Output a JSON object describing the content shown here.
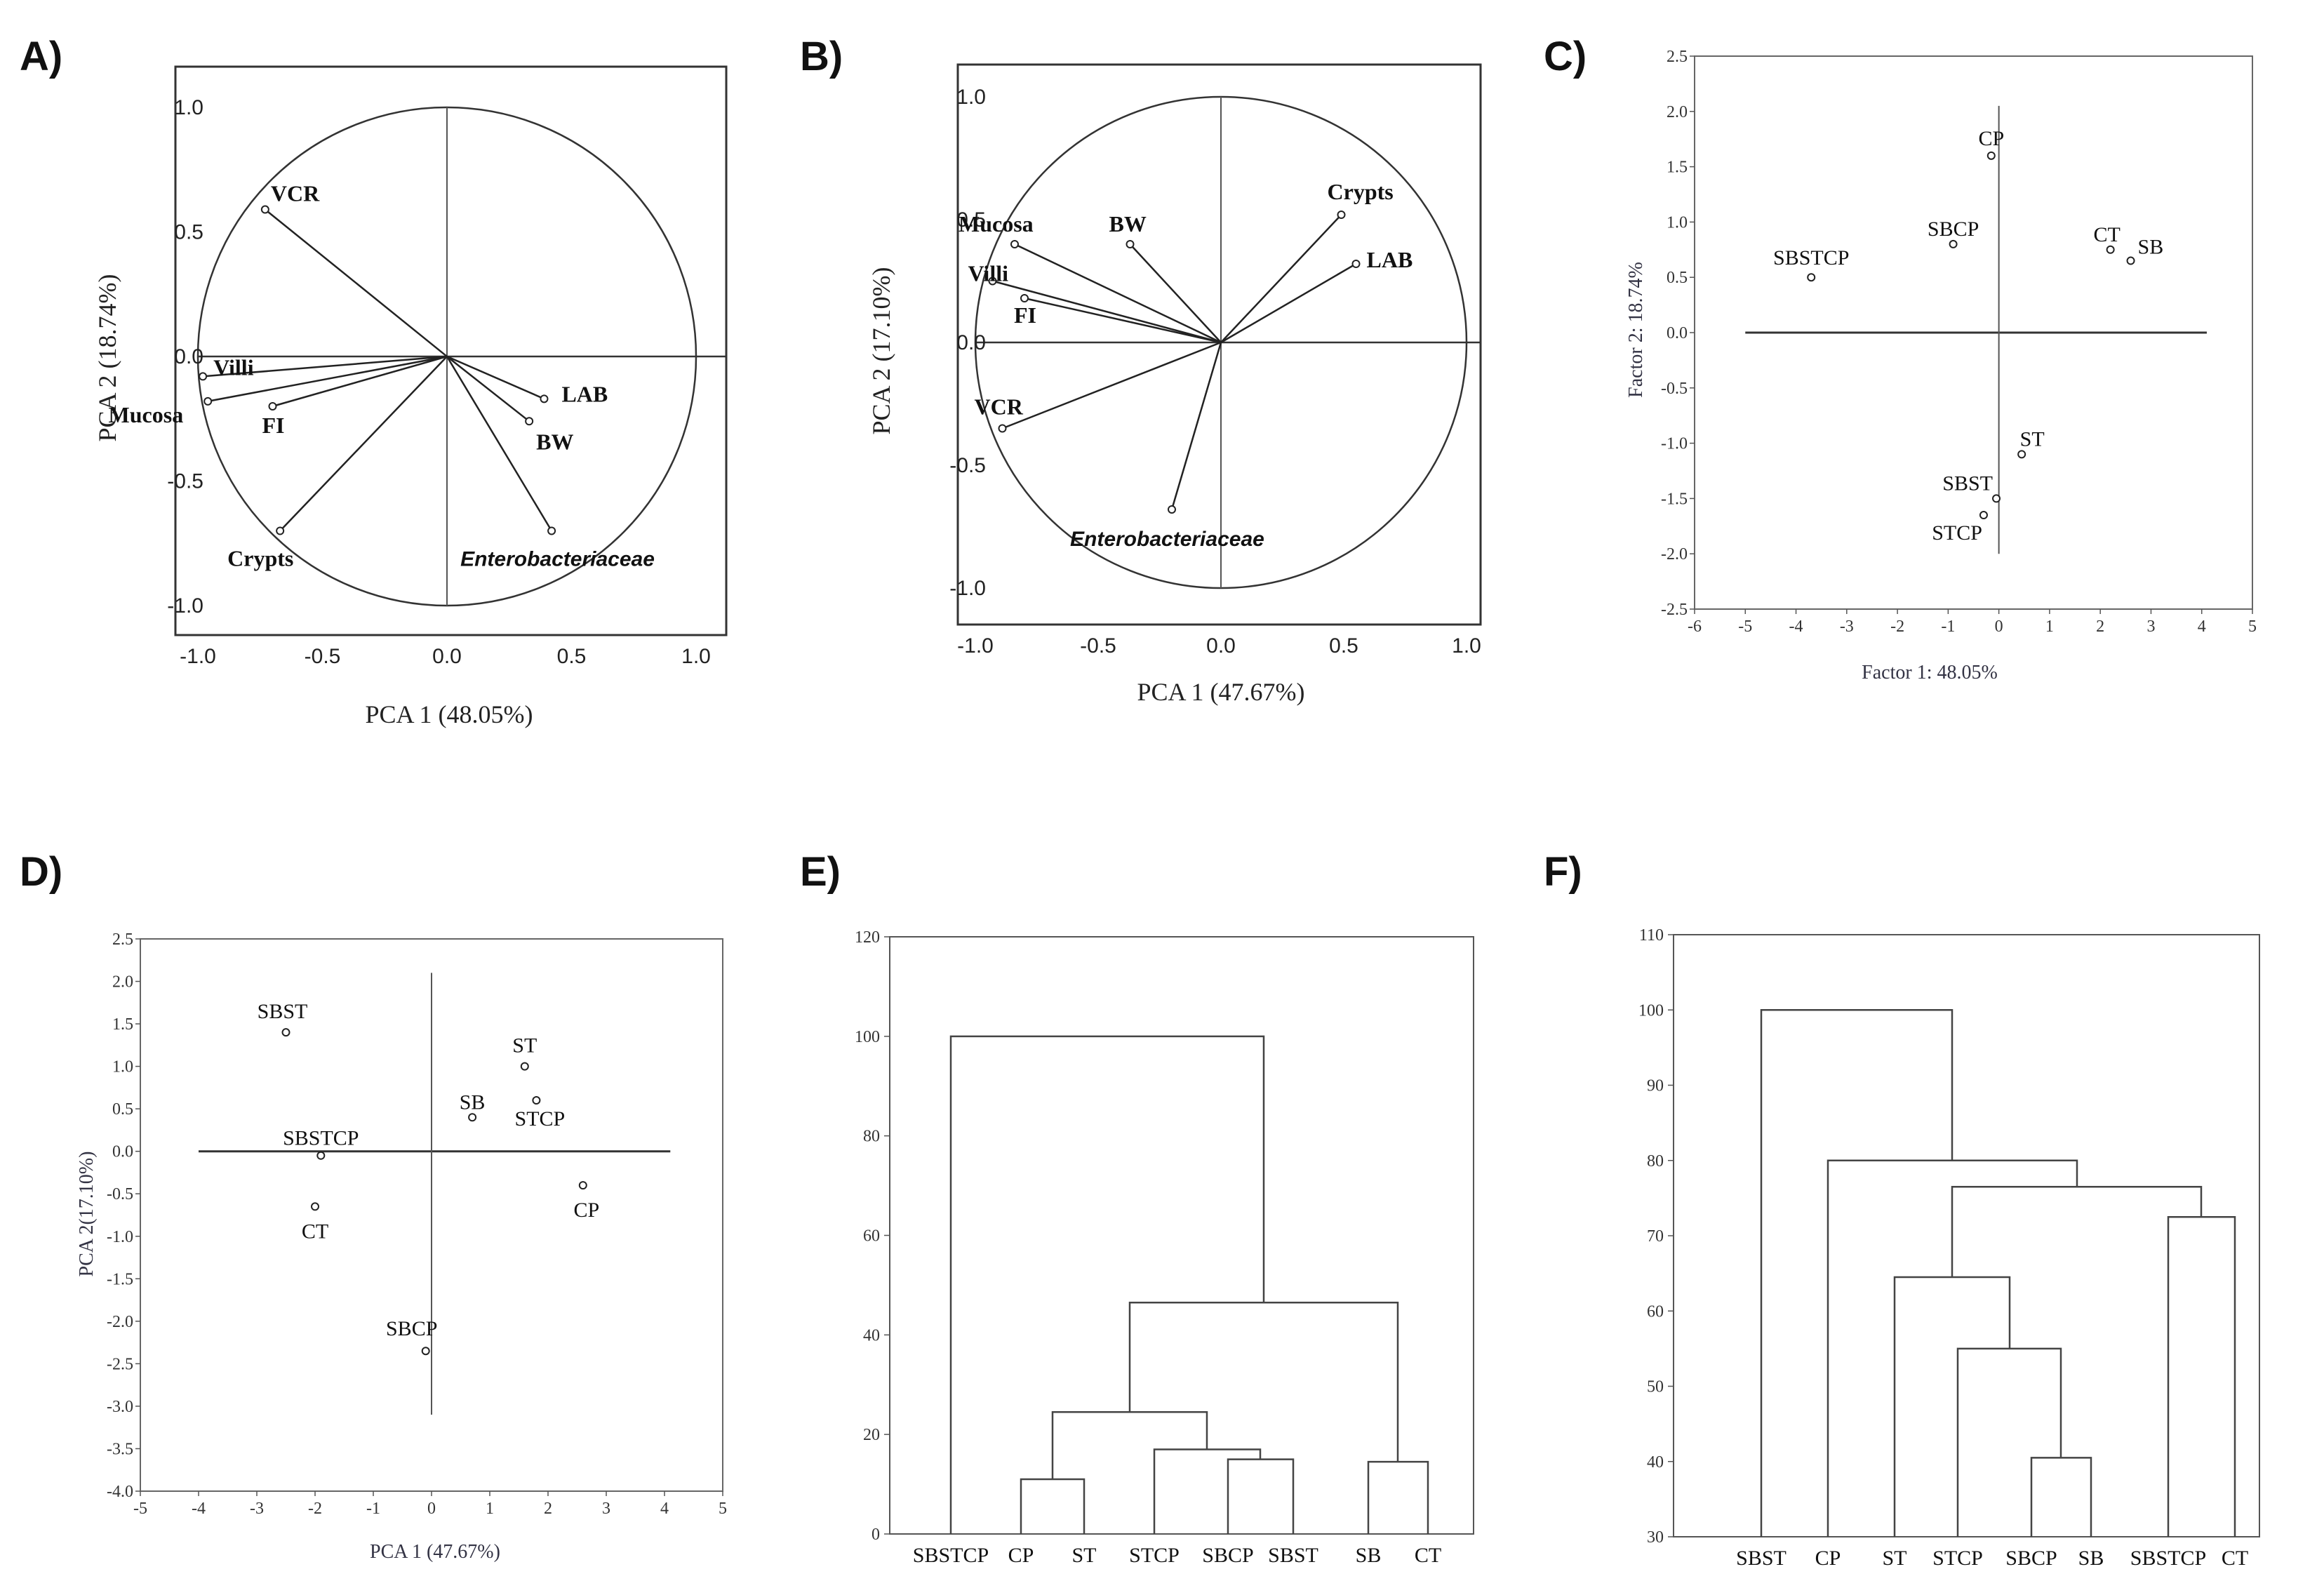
{
  "chart_data": [
    {
      "panel": "A)",
      "type": "scatter",
      "subtype": "pca-loadings",
      "xlabel": "PCA 1 (48.05%)",
      "ylabel": "PCA 2 (18.74%)",
      "xlim": [
        -1.1,
        1.1
      ],
      "ylim": [
        -1.1,
        1.1
      ],
      "xticks": [
        "-1.0",
        "-0.5",
        "0.0",
        "0.5",
        "1.0"
      ],
      "yticks": [
        "1.0",
        "0.5",
        "0.0",
        "-0.5",
        "-1.0"
      ],
      "points": [
        {
          "label": "VCR",
          "x": -0.73,
          "y": 0.59
        },
        {
          "label": "Villi",
          "x": -0.98,
          "y": -0.08
        },
        {
          "label": "Mucosa",
          "x": -0.96,
          "y": -0.18
        },
        {
          "label": "FI",
          "x": -0.7,
          "y": -0.2
        },
        {
          "label": "LAB",
          "x": 0.39,
          "y": -0.17
        },
        {
          "label": "BW",
          "x": 0.33,
          "y": -0.26
        },
        {
          "label": "Crypts",
          "x": -0.67,
          "y": -0.7
        },
        {
          "label": "Enterobacteriaceae",
          "x": 0.42,
          "y": -0.7,
          "italic": true
        }
      ]
    },
    {
      "panel": "B)",
      "type": "scatter",
      "subtype": "pca-loadings",
      "xlabel": "PCA 1 (47.67%)",
      "ylabel": "PCA 2 (17.10%)",
      "xlim": [
        -1.1,
        1.1
      ],
      "ylim": [
        -1.1,
        1.1
      ],
      "xticks": [
        "-1.0",
        "-0.5",
        "0.0",
        "0.5",
        "1.0"
      ],
      "yticks": [
        "1.0",
        "0.5",
        "0.0",
        "-0.5",
        "-1.0"
      ],
      "points": [
        {
          "label": "Crypts",
          "x": 0.49,
          "y": 0.52
        },
        {
          "label": "LAB",
          "x": 0.55,
          "y": 0.32
        },
        {
          "label": "BW",
          "x": -0.37,
          "y": 0.4
        },
        {
          "label": "Mucosa",
          "x": -0.84,
          "y": 0.4
        },
        {
          "label": "Villi",
          "x": -0.93,
          "y": 0.25
        },
        {
          "label": "FI",
          "x": -0.8,
          "y": 0.18
        },
        {
          "label": "VCR",
          "x": -0.89,
          "y": -0.35
        },
        {
          "label": "Enterobacteriaceae",
          "x": -0.2,
          "y": -0.68,
          "italic": true
        }
      ]
    },
    {
      "panel": "C)",
      "type": "scatter",
      "xlabel": "Factor 1: 48.05%",
      "ylabel": "Factor 2: 18.74%",
      "xlim": [
        -6,
        5
      ],
      "ylim": [
        -2.5,
        2.5
      ],
      "xticks": [
        "-6",
        "-5",
        "-4",
        "-3",
        "-2",
        "-1",
        "0",
        "1",
        "2",
        "3",
        "4",
        "5"
      ],
      "yticks": [
        "2.5",
        "2.0",
        "1.5",
        "1.0",
        "0.5",
        "0.0",
        "-0.5",
        "-1.0",
        "-1.5",
        "-2.0",
        "-2.5"
      ],
      "points": [
        {
          "label": "CP",
          "x": -0.15,
          "y": 1.6
        },
        {
          "label": "SBCP",
          "x": -0.9,
          "y": 0.8
        },
        {
          "label": "SBSTCP",
          "x": -3.7,
          "y": 0.5
        },
        {
          "label": "CT",
          "x": 2.2,
          "y": 0.75
        },
        {
          "label": "SB",
          "x": 2.6,
          "y": 0.65
        },
        {
          "label": "ST",
          "x": 0.45,
          "y": -1.1
        },
        {
          "label": "SBST",
          "x": -0.05,
          "y": -1.5
        },
        {
          "label": "STCP",
          "x": -0.3,
          "y": -1.65
        }
      ]
    },
    {
      "panel": "D)",
      "type": "scatter",
      "xlabel": "PCA 1 (47.67%)",
      "ylabel": "PCA 2(17.10%)",
      "xlim": [
        -5,
        5
      ],
      "ylim": [
        -4.0,
        2.5
      ],
      "xticks": [
        "-5",
        "-4",
        "-3",
        "-2",
        "-1",
        "0",
        "1",
        "2",
        "3",
        "4",
        "5"
      ],
      "yticks": [
        "2.5",
        "2.0",
        "1.5",
        "1.0",
        "0.5",
        "0.0",
        "-0.5",
        "-1.0",
        "-1.5",
        "-2.0",
        "-2.5",
        "-3.0",
        "-3.5",
        "-4.0"
      ],
      "points": [
        {
          "label": "SBST",
          "x": -2.5,
          "y": 1.4
        },
        {
          "label": "ST",
          "x": 1.6,
          "y": 1.0
        },
        {
          "label": "SB",
          "x": 0.7,
          "y": 0.4
        },
        {
          "label": "STCP",
          "x": 1.8,
          "y": 0.6
        },
        {
          "label": "SBSTCP",
          "x": -1.9,
          "y": -0.05
        },
        {
          "label": "CT",
          "x": -2.0,
          "y": -0.65
        },
        {
          "label": "CP",
          "x": 2.6,
          "y": -0.4
        },
        {
          "label": "SBCP",
          "x": -0.1,
          "y": -2.35
        }
      ]
    },
    {
      "panel": "E)",
      "type": "dendrogram",
      "ylim": [
        0,
        120
      ],
      "yticks": [
        "120",
        "100",
        "80",
        "60",
        "40",
        "20",
        "0"
      ],
      "leaves": [
        "SBSTCP",
        "CP",
        "ST",
        "STCP",
        "SBCP",
        "SBST",
        "SB",
        "CT"
      ],
      "merges": [
        {
          "a": "CP",
          "b": "ST",
          "height": 11
        },
        {
          "a": "SBCP",
          "b": "SBST",
          "height": 15
        },
        {
          "a": "SB",
          "b": "CT",
          "height": 14.5
        },
        {
          "a": "STCP",
          "b": "SBCP+SBST",
          "height": 17
        },
        {
          "a": "CP+ST",
          "b": "STCP+SBCP+SBST",
          "height": 24.5
        },
        {
          "a": "CP..SBST",
          "b": "SB+CT",
          "height": 46.5
        },
        {
          "a": "SBSTCP",
          "b": "rest",
          "height": 100
        }
      ]
    },
    {
      "panel": "F)",
      "type": "dendrogram",
      "ylim": [
        30,
        110
      ],
      "yticks": [
        "110",
        "100",
        "90",
        "80",
        "70",
        "60",
        "50",
        "40",
        "30"
      ],
      "leaves": [
        "SBST",
        "CP",
        "ST",
        "STCP",
        "SBCP",
        "SB",
        "SBSTCP",
        "CT"
      ],
      "merges": [
        {
          "a": "SBCP",
          "b": "SB",
          "height": 40.5
        },
        {
          "a": "STCP",
          "b": "SBCP+SB",
          "height": 55
        },
        {
          "a": "ST",
          "b": "STCP+SBCP+SB",
          "height": 64.5
        },
        {
          "a": "SBSTCP",
          "b": "CT",
          "height": 72.5
        },
        {
          "a": "ST..SB",
          "b": "SBSTCP+CT",
          "height": 76.5
        },
        {
          "a": "CP",
          "b": "ST..CT",
          "height": 80
        },
        {
          "a": "SBST",
          "b": "rest",
          "height": 100
        }
      ]
    }
  ]
}
